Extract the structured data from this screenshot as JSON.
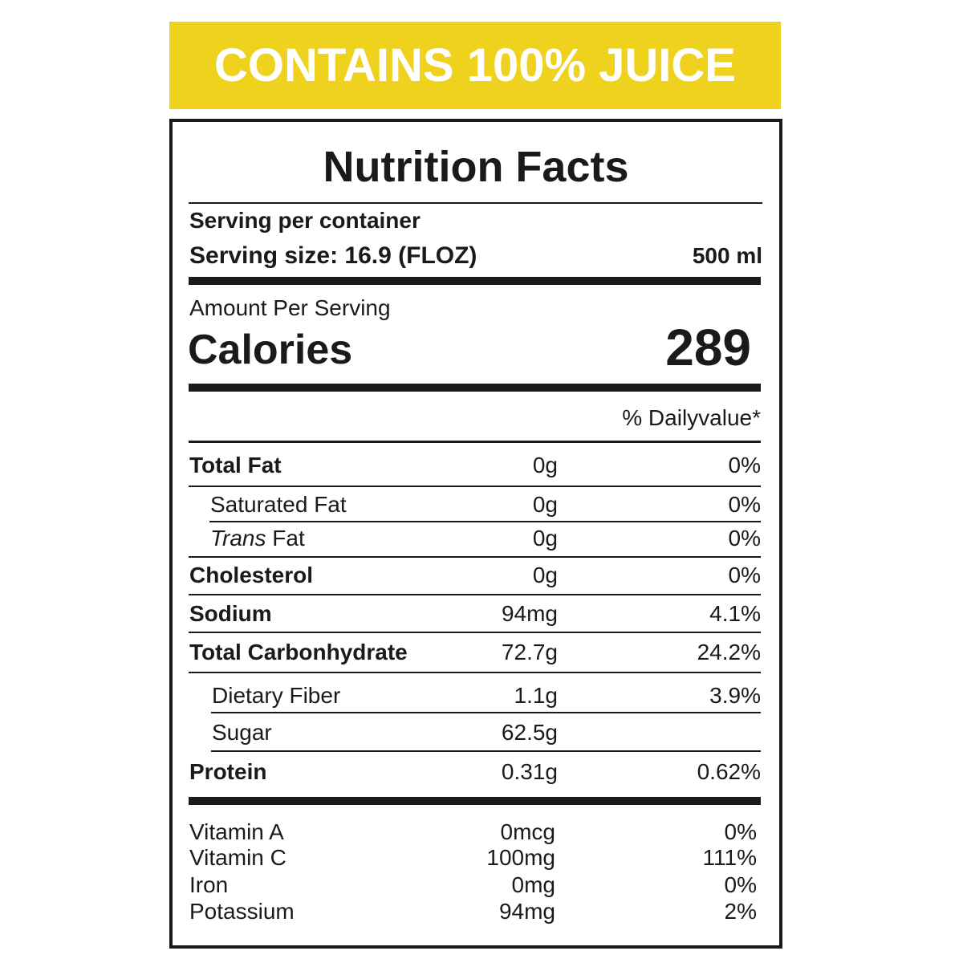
{
  "banner": "CONTAINS 100% JUICE",
  "title": "Nutrition Facts",
  "serving": {
    "per_container": "Serving per container",
    "size": "Serving size: 16.9 (FLOZ)",
    "volume": "500 ml"
  },
  "amount_per_serving": "Amount Per Serving",
  "calories": {
    "label": "Calories",
    "value": "289"
  },
  "daily_value_header": "% Dailyvalue*",
  "nutrients": [
    {
      "name": "Total Fat",
      "amount": "0g",
      "dv": "0%"
    },
    {
      "name": "Saturated Fat",
      "amount": "0g",
      "dv": "0%"
    },
    {
      "name_italic": "Trans",
      "name": "Fat",
      "amount": "0g",
      "dv": "0%"
    },
    {
      "name": "Cholesterol",
      "amount": "0g",
      "dv": "0%"
    },
    {
      "name": "Sodium",
      "amount": "94mg",
      "dv": "4.1%"
    },
    {
      "name": "Total Carbonhydrate",
      "amount": "72.7g",
      "dv": "24.2%"
    },
    {
      "name": "Dietary Fiber",
      "amount": "1.1g",
      "dv": "3.9%"
    },
    {
      "name": "Sugar",
      "amount": "62.5g"
    },
    {
      "name": "Protein",
      "amount": "0.31g",
      "dv": "0.62%"
    }
  ],
  "vitamins": [
    {
      "name": "Vitamin A",
      "amount": "0mcg",
      "dv": "0%"
    },
    {
      "name": "Vitamin C",
      "amount": "100mg",
      "dv": "111%"
    },
    {
      "name": "Iron",
      "amount": "0mg",
      "dv": "0%"
    },
    {
      "name": "Potassium",
      "amount": "94mg",
      "dv": "2%"
    }
  ]
}
